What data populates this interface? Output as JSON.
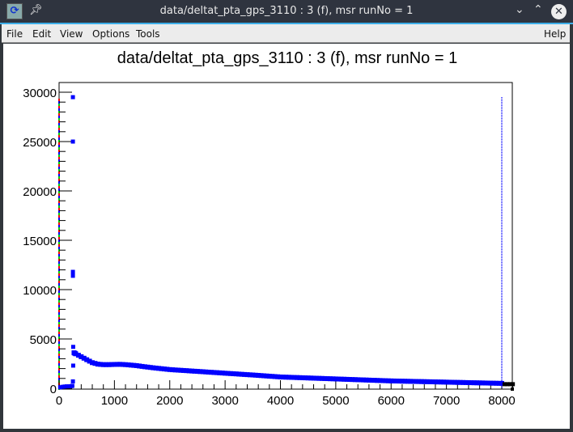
{
  "window": {
    "title": "data/deltat_pta_gps_3110 : 3 (f), msr runNo = 1",
    "icons": [
      "root-app-icon",
      "pin-icon",
      "minimize-icon",
      "maximize-icon",
      "close-icon"
    ]
  },
  "menu": {
    "file": "File",
    "edit": "Edit",
    "view": "View",
    "options": "Options",
    "tools": "Tools",
    "help": "Help"
  },
  "chart_data": {
    "type": "scatter",
    "title": "data/deltat_pta_gps_3110 : 3 (f), msr runNo = 1",
    "xlabel": "",
    "ylabel": "",
    "xlim": [
      0,
      8200
    ],
    "ylim": [
      0,
      30800
    ],
    "xticks": [
      0,
      1000,
      2000,
      3000,
      4000,
      5000,
      6000,
      7000,
      8000
    ],
    "yticks": [
      0,
      5000,
      10000,
      15000,
      20000,
      25000,
      30000
    ],
    "marker_color": "#0000ff",
    "low_points": {
      "x": [
        20,
        60,
        100,
        140,
        180,
        220,
        240
      ],
      "y": [
        100,
        150,
        180,
        200,
        200,
        220,
        250
      ]
    },
    "spikes": {
      "x": [
        250,
        250,
        250,
        250,
        255,
        255,
        250
      ],
      "y": [
        29500,
        25000,
        11800,
        11400,
        4200,
        2300,
        700
      ]
    },
    "series": {
      "x": [
        270,
        300,
        400,
        500,
        600,
        700,
        800,
        900,
        1000,
        1100,
        1200,
        1300,
        1400,
        1500,
        1600,
        1700,
        1800,
        1900,
        2000,
        2100,
        2200,
        2300,
        2400,
        2500,
        2600,
        2700,
        2800,
        2900,
        3000,
        3100,
        3200,
        3300,
        3400,
        3500,
        3600,
        3700,
        3800,
        3900,
        4000,
        4100,
        4200,
        4300,
        4400,
        4500,
        4600,
        4700,
        4800,
        4900,
        5000,
        5100,
        5200,
        5300,
        5400,
        5500,
        5600,
        5700,
        5800,
        5900,
        6000,
        6100,
        6200,
        6300,
        6400,
        6500,
        6600,
        6700,
        6800,
        6900,
        7000,
        7100,
        7200,
        7300,
        7400,
        7500,
        7600,
        7700,
        7800,
        7900,
        8000
      ],
      "y": [
        3600,
        3500,
        3200,
        2900,
        2600,
        2450,
        2400,
        2400,
        2420,
        2430,
        2400,
        2350,
        2300,
        2220,
        2150,
        2080,
        2020,
        1960,
        1900,
        1860,
        1825,
        1790,
        1750,
        1715,
        1680,
        1640,
        1605,
        1570,
        1530,
        1495,
        1460,
        1420,
        1385,
        1350,
        1310,
        1270,
        1230,
        1190,
        1150,
        1130,
        1110,
        1090,
        1070,
        1050,
        1030,
        1010,
        990,
        970,
        950,
        930,
        910,
        890,
        870,
        850,
        830,
        810,
        790,
        770,
        750,
        738,
        725,
        712,
        700,
        688,
        675,
        662,
        650,
        638,
        625,
        612,
        600,
        588,
        575,
        562,
        550,
        538,
        525,
        512,
        500
      ]
    },
    "overflow_points": {
      "x": [
        8050,
        8100,
        8150,
        8200
      ],
      "y": [
        420,
        420,
        420,
        420
      ],
      "color": "#000000"
    },
    "vertical_line": {
      "x": 8000,
      "y_top": 29500,
      "style": "dotted",
      "color": "#0000ff"
    },
    "y_axis_line_colors": [
      "#00cc00",
      "#ff0000",
      "#0000ff"
    ]
  }
}
